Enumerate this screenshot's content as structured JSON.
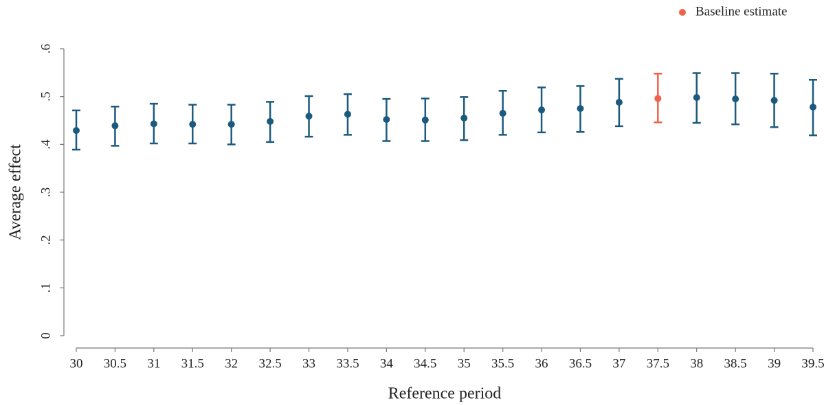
{
  "chart_data": {
    "type": "errorbar",
    "x_label": "Reference period",
    "y_label": "Average effect",
    "xlim": [
      30,
      39.5
    ],
    "xticks": [
      30,
      30.5,
      31,
      31.5,
      32,
      32.5,
      33,
      33.5,
      34,
      34.5,
      35,
      35.5,
      36,
      36.5,
      37,
      37.5,
      38,
      38.5,
      39,
      39.5
    ],
    "ylim": [
      0,
      0.6
    ],
    "yticks": [
      0,
      {
        "value": 0.1,
        "label": ".1"
      },
      {
        "value": 0.2,
        "label": ".2"
      },
      {
        "value": 0.3,
        "label": ".3"
      },
      {
        "value": 0.4,
        "label": ".4"
      },
      {
        "value": 0.5,
        "label": ".5"
      },
      {
        "value": 0.6,
        "label": ".6"
      }
    ],
    "grid": false,
    "legend_position": "top-right",
    "series": [
      {
        "color": "#1b5a7e",
        "x": [
          30,
          30.5,
          31,
          31.5,
          32,
          32.5,
          33,
          33.5,
          34,
          34.5,
          35,
          35.5,
          36,
          36.5,
          37,
          38,
          38.5,
          39,
          39.5
        ],
        "values": [
          0.429,
          0.439,
          0.443,
          0.442,
          0.442,
          0.448,
          0.459,
          0.463,
          0.452,
          0.451,
          0.455,
          0.465,
          0.472,
          0.475,
          0.488,
          0.498,
          0.495,
          0.492,
          0.478
        ],
        "lower": [
          0.389,
          0.397,
          0.402,
          0.402,
          0.4,
          0.405,
          0.416,
          0.42,
          0.407,
          0.407,
          0.409,
          0.42,
          0.425,
          0.426,
          0.438,
          0.445,
          0.442,
          0.436,
          0.419
        ],
        "upper": [
          0.471,
          0.479,
          0.485,
          0.483,
          0.483,
          0.489,
          0.501,
          0.505,
          0.495,
          0.496,
          0.499,
          0.512,
          0.519,
          0.522,
          0.537,
          0.549,
          0.549,
          0.548,
          0.535
        ]
      },
      {
        "name": "Baseline estimate",
        "color": "#f0614a",
        "x": [
          37.5
        ],
        "values": [
          0.496
        ],
        "lower": [
          0.446
        ],
        "upper": [
          0.548
        ]
      }
    ]
  }
}
